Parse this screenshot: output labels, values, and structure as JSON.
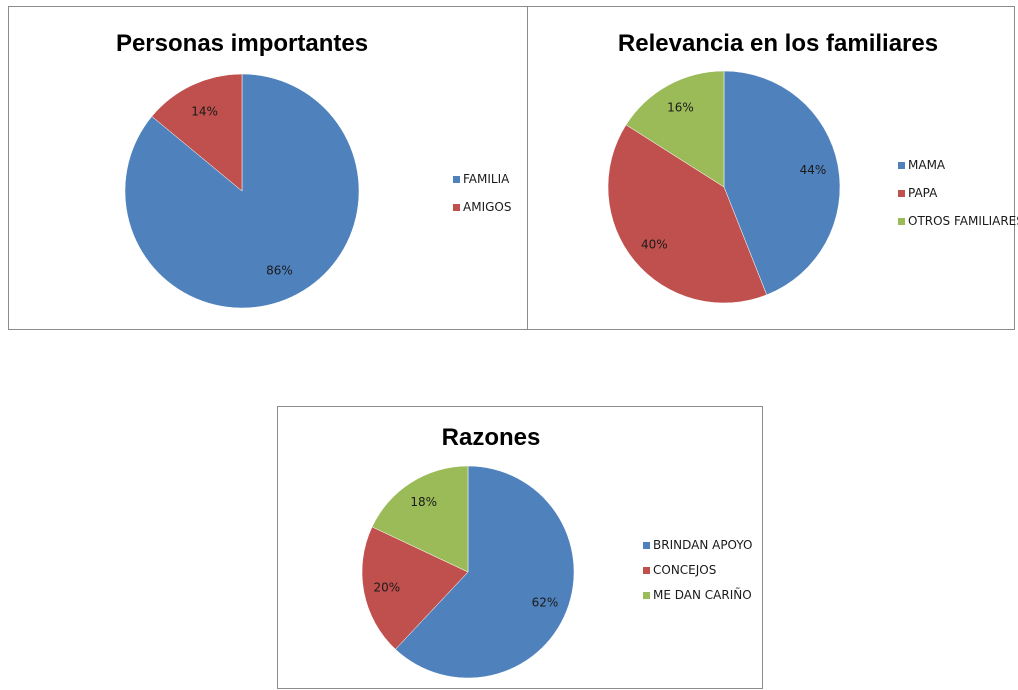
{
  "colors": {
    "blue": "#4f81bd",
    "red": "#c0504d",
    "green": "#9bbb59"
  },
  "chart_data": [
    {
      "type": "pie",
      "title": "Personas importantes",
      "categories": [
        "FAMILIA",
        "AMIGOS"
      ],
      "values": [
        86,
        14
      ],
      "labels": [
        "86%",
        "14%"
      ],
      "colors": [
        "#4f81bd",
        "#c0504d"
      ],
      "legend_position": "right"
    },
    {
      "type": "pie",
      "title": "Relevancia en los familiares",
      "categories": [
        "MAMA",
        "PAPA",
        "OTROS FAMILIARES"
      ],
      "values": [
        44,
        40,
        16
      ],
      "labels": [
        "44%",
        "40%",
        "16%"
      ],
      "colors": [
        "#4f81bd",
        "#c0504d",
        "#9bbb59"
      ],
      "legend_position": "right"
    },
    {
      "type": "pie",
      "title": "Razones",
      "categories": [
        "BRINDAN APOYO",
        "CONCEJOS",
        "ME DAN CARIÑO"
      ],
      "values": [
        62,
        20,
        18
      ],
      "labels": [
        "62%",
        "20%",
        "18%"
      ],
      "colors": [
        "#4f81bd",
        "#c0504d",
        "#9bbb59"
      ],
      "legend_position": "right"
    }
  ]
}
